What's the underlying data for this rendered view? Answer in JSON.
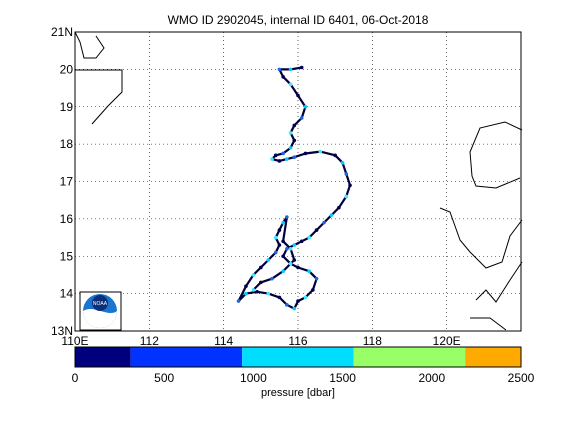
{
  "map": {
    "title": "WMO ID 2902045, internal ID 6401, 06-Oct-2018",
    "lon_range": [
      110,
      122
    ],
    "lat_range": [
      13,
      21
    ],
    "lon_ticks": [
      {
        "value": 110,
        "label": "110E"
      },
      {
        "value": 112,
        "label": "112"
      },
      {
        "value": 114,
        "label": "114"
      },
      {
        "value": 116,
        "label": "116"
      },
      {
        "value": 118,
        "label": "118"
      },
      {
        "value": 120,
        "label": "120E"
      }
    ],
    "lat_ticks": [
      {
        "value": 13,
        "label": "13N"
      },
      {
        "value": 14,
        "label": "14"
      },
      {
        "value": 15,
        "label": "15"
      },
      {
        "value": 16,
        "label": "16"
      },
      {
        "value": 17,
        "label": "17"
      },
      {
        "value": 18,
        "label": "18"
      },
      {
        "value": 19,
        "label": "19"
      },
      {
        "value": 20,
        "label": "20"
      },
      {
        "value": 21,
        "label": "21N"
      }
    ],
    "grid": "dotted",
    "logo": "noaa-logo",
    "track": [
      [
        116.1,
        20.05
      ],
      [
        115.8,
        20.0
      ],
      [
        115.5,
        20.0
      ],
      [
        115.6,
        19.8
      ],
      [
        115.8,
        19.6
      ],
      [
        116.0,
        19.3
      ],
      [
        116.2,
        19.0
      ],
      [
        116.1,
        18.7
      ],
      [
        115.9,
        18.5
      ],
      [
        115.8,
        18.3
      ],
      [
        115.9,
        18.1
      ],
      [
        115.8,
        17.9
      ],
      [
        115.6,
        17.75
      ],
      [
        115.4,
        17.7
      ],
      [
        115.3,
        17.6
      ],
      [
        115.5,
        17.55
      ],
      [
        115.7,
        17.6
      ],
      [
        115.9,
        17.65
      ],
      [
        116.2,
        17.75
      ],
      [
        116.6,
        17.8
      ],
      [
        117.0,
        17.7
      ],
      [
        117.2,
        17.5
      ],
      [
        117.3,
        17.2
      ],
      [
        117.4,
        16.9
      ],
      [
        117.3,
        16.6
      ],
      [
        117.1,
        16.3
      ],
      [
        116.9,
        16.1
      ],
      [
        116.7,
        15.9
      ],
      [
        116.5,
        15.7
      ],
      [
        116.3,
        15.5
      ],
      [
        116.1,
        15.4
      ],
      [
        115.9,
        15.3
      ],
      [
        115.7,
        15.2
      ],
      [
        115.6,
        15.0
      ],
      [
        115.8,
        14.8
      ],
      [
        116.0,
        14.7
      ],
      [
        116.3,
        14.6
      ],
      [
        116.5,
        14.4
      ],
      [
        116.4,
        14.1
      ],
      [
        116.2,
        13.9
      ],
      [
        116.0,
        13.8
      ],
      [
        115.9,
        13.6
      ],
      [
        115.7,
        13.7
      ],
      [
        115.5,
        13.9
      ],
      [
        115.2,
        14.0
      ],
      [
        114.9,
        14.05
      ],
      [
        114.6,
        14.0
      ],
      [
        114.4,
        13.8
      ],
      [
        114.6,
        14.2
      ],
      [
        114.8,
        14.5
      ],
      [
        115.0,
        14.7
      ],
      [
        115.2,
        14.9
      ],
      [
        115.4,
        15.1
      ],
      [
        115.5,
        15.3
      ],
      [
        115.4,
        15.5
      ],
      [
        115.5,
        15.7
      ],
      [
        115.6,
        15.9
      ],
      [
        115.7,
        16.05
      ],
      [
        115.6,
        15.4
      ],
      [
        115.8,
        15.2
      ],
      [
        115.9,
        14.9
      ],
      [
        115.6,
        14.6
      ],
      [
        115.3,
        14.4
      ],
      [
        115.0,
        14.3
      ],
      [
        114.8,
        14.1
      ]
    ],
    "track_colors": [
      "#00004f",
      "#00ccff",
      "#1f66e5",
      "#00004f",
      "#3fe8ff"
    ]
  },
  "colorbar": {
    "label": "pressure [dbar]",
    "ticks": [
      {
        "value": 0,
        "label": "0"
      },
      {
        "value": 500,
        "label": "500"
      },
      {
        "value": 1000,
        "label": "1000"
      },
      {
        "value": 1500,
        "label": "1500"
      },
      {
        "value": 2000,
        "label": "2000"
      },
      {
        "value": 2500,
        "label": "2500"
      }
    ],
    "range": [
      0,
      2500
    ],
    "segments": [
      {
        "from": 0,
        "to": 312,
        "color": "#00007f"
      },
      {
        "from": 312,
        "to": 937,
        "color": "#0033ff"
      },
      {
        "from": 937,
        "to": 1562,
        "color": "#00ddff"
      },
      {
        "from": 1562,
        "to": 2187,
        "color": "#99ff66"
      },
      {
        "from": 2187,
        "to": 2500,
        "color": "#ffaa00"
      }
    ]
  }
}
